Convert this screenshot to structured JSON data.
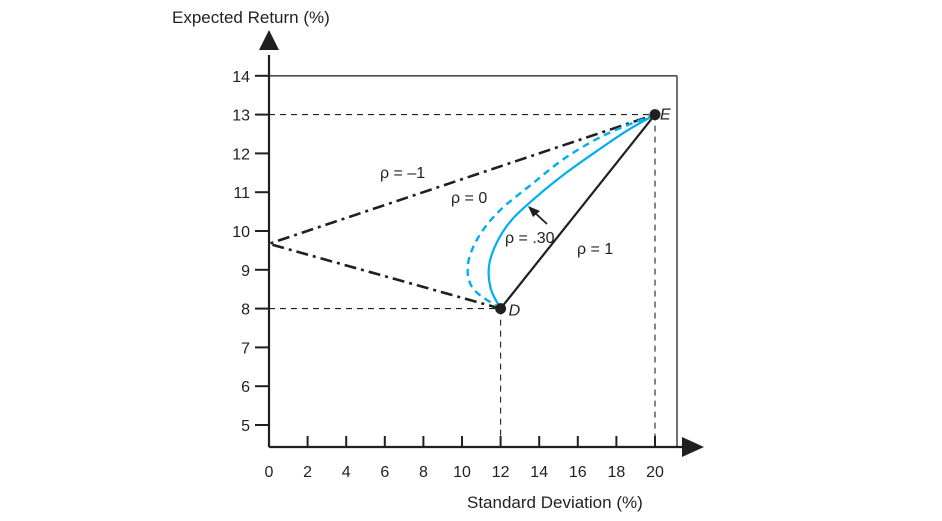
{
  "chart_data": {
    "type": "line",
    "xlabel": "Standard Deviation (%)",
    "ylabel": "Expected Return (%)",
    "xlim": [
      0,
      20
    ],
    "ylim": [
      5,
      14
    ],
    "x_ticks": [
      0,
      2,
      4,
      6,
      8,
      10,
      12,
      14,
      16,
      18,
      20
    ],
    "y_ticks": [
      5,
      6,
      7,
      8,
      9,
      10,
      11,
      12,
      13,
      14
    ],
    "grid": false,
    "colors": {
      "axes": "#231f20",
      "curve": "#00aeef"
    },
    "points": [
      {
        "name": "D",
        "x": 12,
        "y": 8
      },
      {
        "name": "E",
        "x": 20,
        "y": 13
      }
    ],
    "series": [
      {
        "name": "ρ = 1",
        "style": "solid",
        "color": "#231f20",
        "x": [
          12,
          20
        ],
        "y": [
          8,
          13
        ]
      },
      {
        "name": "ρ = –1",
        "style": "dash-dot",
        "color": "#231f20",
        "x": [
          12,
          0,
          20
        ],
        "y": [
          8,
          9.67,
          13
        ]
      },
      {
        "name": "ρ = 0",
        "style": "dashed",
        "color": "#00aeef",
        "x": [
          12,
          10.6,
          10.3,
          10.8,
          11.9,
          13.6,
          15.4,
          17.5,
          20
        ],
        "y": [
          8,
          8.5,
          9.1,
          9.8,
          10.5,
          11.2,
          11.9,
          12.5,
          13
        ]
      },
      {
        "name": "ρ = .30",
        "style": "solid",
        "color": "#00aeef",
        "x": [
          12,
          11.5,
          11.4,
          11.8,
          12.6,
          13.9,
          15.4,
          17.1,
          18.6,
          20
        ],
        "y": [
          8,
          8.5,
          9.1,
          9.7,
          10.3,
          10.9,
          11.5,
          12.1,
          12.6,
          13
        ]
      }
    ],
    "annotations": [
      {
        "text": "ρ = –1",
        "target": "ρ = –1"
      },
      {
        "text": "ρ = 0",
        "target": "ρ = 0"
      },
      {
        "text": "ρ = .30",
        "target": "ρ = .30",
        "arrow": true
      },
      {
        "text": "ρ = 1",
        "target": "ρ = 1"
      }
    ]
  }
}
